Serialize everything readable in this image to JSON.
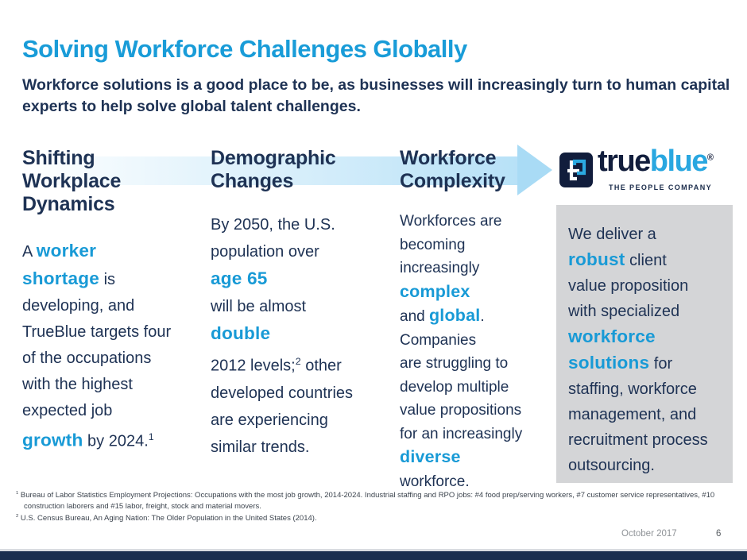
{
  "title": "Solving Workforce Challenges Globally",
  "subtitle": "Workforce solutions is a good place to be, as businesses will increasingly turn to human capital experts to help solve global talent challenges.",
  "columns": [
    {
      "heading_lines": [
        "Shifting",
        "Workplace",
        "Dynamics"
      ],
      "body_runs": [
        {
          "t": "A ",
          "hl": false
        },
        {
          "t": "worker",
          "hl": true
        },
        {
          "br": true
        },
        {
          "t": "shortage",
          "hl": true
        },
        {
          "t": " is",
          "hl": false
        },
        {
          "br": true
        },
        {
          "t": "developing, and",
          "hl": false
        },
        {
          "br": true
        },
        {
          "t": "TrueBlue targets four",
          "hl": false
        },
        {
          "br": true
        },
        {
          "t": "of the occupations",
          "hl": false
        },
        {
          "br": true
        },
        {
          "t": "with the highest",
          "hl": false
        },
        {
          "br": true
        },
        {
          "t": "expected job",
          "hl": false
        },
        {
          "br": true
        },
        {
          "t": "growth",
          "hl": true
        },
        {
          "t": " by 2024.",
          "hl": false
        },
        {
          "t": "1",
          "sup": true
        }
      ]
    },
    {
      "heading_lines": [
        "Demographic",
        "Changes"
      ],
      "body_runs": [
        {
          "t": "By 2050, the U.S.",
          "hl": false
        },
        {
          "br": true
        },
        {
          "t": "population over",
          "hl": false
        },
        {
          "br": true
        },
        {
          "t": "age 65",
          "hl": true
        },
        {
          "br": true
        },
        {
          "t": "will be almost",
          "hl": false
        },
        {
          "br": true
        },
        {
          "t": "double",
          "hl": true
        },
        {
          "br": true
        },
        {
          "t": "2012 levels;",
          "hl": false
        },
        {
          "t": "2",
          "sup": true
        },
        {
          "t": " other",
          "hl": false
        },
        {
          "br": true
        },
        {
          "t": "developed countries",
          "hl": false
        },
        {
          "br": true
        },
        {
          "t": "are experiencing",
          "hl": false
        },
        {
          "br": true
        },
        {
          "t": "similar trends.",
          "hl": false
        }
      ]
    },
    {
      "heading_lines": [
        "Workforce",
        "Complexity"
      ],
      "body_runs": [
        {
          "t": "Workforces are",
          "hl": false
        },
        {
          "br": true
        },
        {
          "t": "becoming",
          "hl": false
        },
        {
          "br": true
        },
        {
          "t": "increasingly",
          "hl": false
        },
        {
          "br": true
        },
        {
          "t": "complex",
          "hl": true
        },
        {
          "br": true
        },
        {
          "t": "and ",
          "hl": false
        },
        {
          "t": "global",
          "hl": true
        },
        {
          "t": ".",
          "hl": false
        },
        {
          "br": true
        },
        {
          "t": "Companies",
          "hl": false
        },
        {
          "br": true
        },
        {
          "t": "are struggling to",
          "hl": false
        },
        {
          "br": true
        },
        {
          "t": "develop multiple",
          "hl": false
        },
        {
          "br": true
        },
        {
          "t": "value propositions",
          "hl": false
        },
        {
          "br": true
        },
        {
          "t": "for an increasingly",
          "hl": false
        },
        {
          "br": true
        },
        {
          "t": "diverse",
          "hl": true
        },
        {
          "br": true
        },
        {
          "t": "workforce.",
          "hl": false
        }
      ]
    }
  ],
  "logo": {
    "brand_true": "true",
    "brand_blue": "blue",
    "registered": "®",
    "tagline": "THE PEOPLE COMPANY",
    "icon": "trueblue-monogram"
  },
  "value_box_runs": [
    {
      "t": "We deliver a",
      "hl": false
    },
    {
      "br": true
    },
    {
      "t": "robust",
      "hl": true
    },
    {
      "t": " client",
      "hl": false
    },
    {
      "br": true
    },
    {
      "t": "value proposition",
      "hl": false
    },
    {
      "br": true
    },
    {
      "t": "with specialized",
      "hl": false
    },
    {
      "br": true
    },
    {
      "t": "workforce",
      "hl": true
    },
    {
      "br": true
    },
    {
      "t": "solutions",
      "hl": true
    },
    {
      "t": " for",
      "hl": false
    },
    {
      "br": true
    },
    {
      "t": "staffing, workforce",
      "hl": false
    },
    {
      "br": true
    },
    {
      "t": "management, and",
      "hl": false
    },
    {
      "br": true
    },
    {
      "t": "recruitment process",
      "hl": false
    },
    {
      "br": true
    },
    {
      "t": "outsourcing.",
      "hl": false
    }
  ],
  "footnotes": [
    {
      "marker": "1",
      "text": "Bureau of Labor Statistics Employment Projections: Occupations with the most job growth, 2014-2024. Industrial staffing and RPO jobs: #4 food prep/serving workers, #7 customer service representatives, #10 construction laborers and #15 labor, freight, stock and material movers."
    },
    {
      "marker": "2",
      "text": "U.S. Census Bureau, An Aging Nation: The Older Population in the United States (2014)."
    }
  ],
  "footer": {
    "date": "October 2017",
    "page_number": "6"
  },
  "colors": {
    "accent_cyan": "#199CD8",
    "navy_text": "#1E3254",
    "logo_navy": "#111D3C",
    "logo_cyan": "#29A7E0",
    "box_bg": "#D4D5D7",
    "arrow_blue": "#A9DBF5",
    "footer_bar_navy": "#1B2F4F"
  }
}
